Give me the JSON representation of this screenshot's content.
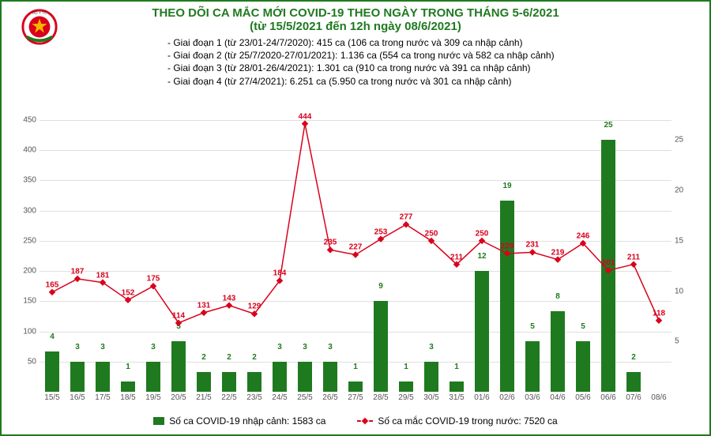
{
  "logo": {
    "top_text": "BỘ Y TẾ",
    "colors": {
      "ring": "#d9001b",
      "star": "#f7b500",
      "ribbon": "#1f7a1f"
    }
  },
  "title": {
    "line1": "THEO DÕI CA MẮC MỚI COVID-19 THEO NGÀY TRONG THÁNG 5-6/2021",
    "line2": "(từ 15/5/2021 đến 12h ngày 08/6/2021)"
  },
  "phases": [
    "- Giai đoạn 1 (từ 23/01-24/7/2020): 415 ca (106 ca trong nước và 309 ca nhập cảnh)",
    "- Giai đoạn 2 (từ 25/7/2020-27/01/2021): 1.136 ca (554 ca trong nước và 582 ca nhập cảnh)",
    "- Giai đoạn 3 (từ 28/01-26/4/2021): 1.301 ca (910 ca trong nước và 391 ca nhập cảnh)",
    "- Giai đoạn 4 (từ 27/4/2021): 6.251 ca (5.950 ca trong nước và 301 ca nhập cảnh)"
  ],
  "chart": {
    "categories": [
      "15/5",
      "16/5",
      "17/5",
      "18/5",
      "19/5",
      "20/5",
      "21/5",
      "22/5",
      "23/5",
      "24/5",
      "25/5",
      "26/5",
      "27/5",
      "28/5",
      "29/5",
      "30/5",
      "31/5",
      "01/6",
      "02/6",
      "03/6",
      "04/6",
      "05/6",
      "06/6",
      "07/6",
      "08/6"
    ],
    "bars": {
      "values": [
        4,
        3,
        3,
        1,
        3,
        5,
        2,
        2,
        2,
        3,
        3,
        3,
        1,
        9,
        1,
        3,
        1,
        12,
        19,
        5,
        8,
        5,
        25,
        2
      ],
      "labels_offset_for_25": false,
      "color": "#1f7a1f",
      "width_ratio": 0.55,
      "y_axis": "right",
      "missing_at_index": 24
    },
    "line": {
      "values": [
        165,
        187,
        181,
        152,
        175,
        114,
        131,
        143,
        129,
        184,
        444,
        235,
        227,
        253,
        277,
        250,
        211,
        250,
        229,
        231,
        219,
        246,
        201,
        211,
        118
      ],
      "color": "#d9001b",
      "width": 1.5,
      "marker": "diamond",
      "marker_size": 6,
      "y_axis": "left"
    },
    "y_left": {
      "min": 0,
      "max": 450,
      "step": 50,
      "hide_zero": true
    },
    "y_right": {
      "min": 0,
      "max": 27,
      "step": 5,
      "hide_zero": true,
      "show_max_tick": false
    },
    "grid_color": "#e0e0e0",
    "background": "#ffffff",
    "fontsize": {
      "tick": 10,
      "data_label": 10,
      "title": 15,
      "phase": 12
    }
  },
  "legend": {
    "bar": "Số ca COVID-19 nhập cảnh: 1583 ca",
    "line": "Số ca mắc COVID-19 trong nước: 7520 ca"
  }
}
